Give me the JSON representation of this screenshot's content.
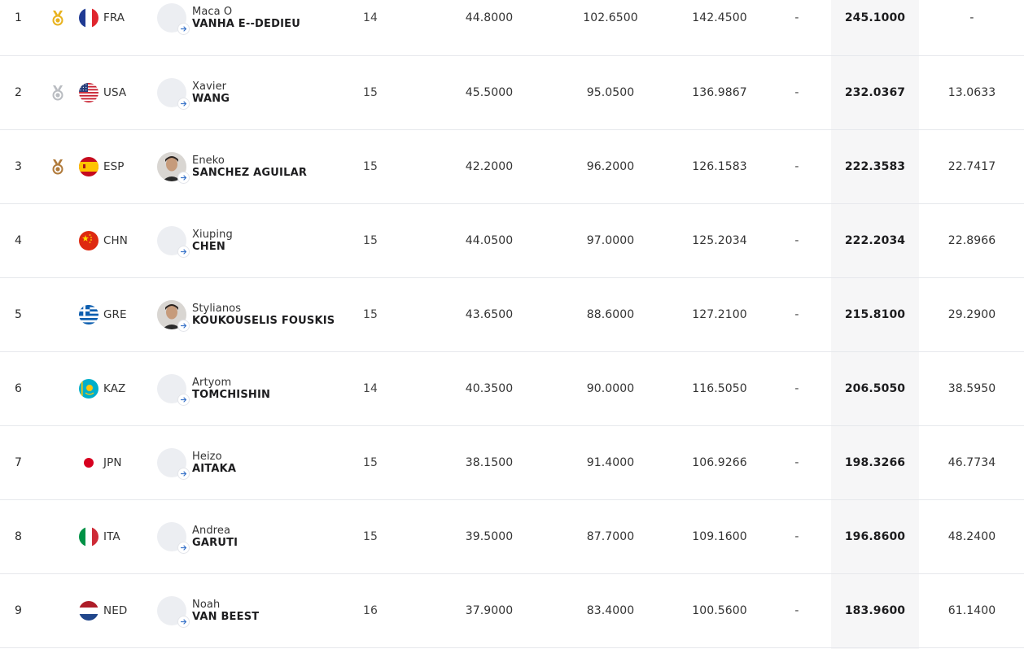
{
  "colors": {
    "gold": "#e8b21e",
    "silver": "#b9bcc1",
    "bronze": "#b07a3a",
    "row_divider": "#e6e8ec",
    "total_column_bg": "#f6f6f7"
  },
  "results": [
    {
      "rank": "1",
      "medal": "gold",
      "noc": "FRA",
      "flag": "flag-france-icon",
      "first_name": "Maca O",
      "last_name": "VANHA E--DEDIEU",
      "photo": "avatar-placeholder",
      "age": "14",
      "run1": "44.8000",
      "run2": "102.6500",
      "run3": "142.4500",
      "extra": "-",
      "total": "245.1000",
      "behind": "-"
    },
    {
      "rank": "2",
      "medal": "silver",
      "noc": "USA",
      "flag": "flag-usa-icon",
      "first_name": "Xavier",
      "last_name": "WANG",
      "photo": "avatar-placeholder",
      "age": "15",
      "run1": "45.5000",
      "run2": "95.0500",
      "run3": "136.9867",
      "extra": "-",
      "total": "232.0367",
      "behind": "13.0633"
    },
    {
      "rank": "3",
      "medal": "bronze",
      "noc": "ESP",
      "flag": "flag-spain-icon",
      "first_name": "Eneko",
      "last_name": "SANCHEZ AGUILAR",
      "photo": "athlete-photo",
      "age": "15",
      "run1": "42.2000",
      "run2": "96.2000",
      "run3": "126.1583",
      "extra": "-",
      "total": "222.3583",
      "behind": "22.7417"
    },
    {
      "rank": "4",
      "medal": "",
      "noc": "CHN",
      "flag": "flag-china-icon",
      "first_name": "Xiuping",
      "last_name": "CHEN",
      "photo": "avatar-placeholder",
      "age": "15",
      "run1": "44.0500",
      "run2": "97.0000",
      "run3": "125.2034",
      "extra": "-",
      "total": "222.2034",
      "behind": "22.8966"
    },
    {
      "rank": "5",
      "medal": "",
      "noc": "GRE",
      "flag": "flag-greece-icon",
      "first_name": "Stylianos",
      "last_name": "KOUKOUSELIS FOUSKIS",
      "photo": "athlete-photo",
      "age": "15",
      "run1": "43.6500",
      "run2": "88.6000",
      "run3": "127.2100",
      "extra": "-",
      "total": "215.8100",
      "behind": "29.2900"
    },
    {
      "rank": "6",
      "medal": "",
      "noc": "KAZ",
      "flag": "flag-kazakhstan-icon",
      "first_name": "Artyom",
      "last_name": "TOMCHISHIN",
      "photo": "avatar-placeholder",
      "age": "14",
      "run1": "40.3500",
      "run2": "90.0000",
      "run3": "116.5050",
      "extra": "-",
      "total": "206.5050",
      "behind": "38.5950"
    },
    {
      "rank": "7",
      "medal": "",
      "noc": "JPN",
      "flag": "flag-japan-icon",
      "first_name": "Heizo",
      "last_name": "AITAKA",
      "photo": "avatar-placeholder",
      "age": "15",
      "run1": "38.1500",
      "run2": "91.4000",
      "run3": "106.9266",
      "extra": "-",
      "total": "198.3266",
      "behind": "46.7734"
    },
    {
      "rank": "8",
      "medal": "",
      "noc": "ITA",
      "flag": "flag-italy-icon",
      "first_name": "Andrea",
      "last_name": "GARUTI",
      "photo": "avatar-placeholder",
      "age": "15",
      "run1": "39.5000",
      "run2": "87.7000",
      "run3": "109.1600",
      "extra": "-",
      "total": "196.8600",
      "behind": "48.2400"
    },
    {
      "rank": "9",
      "medal": "",
      "noc": "NED",
      "flag": "flag-netherlands-icon",
      "first_name": "Noah",
      "last_name": "VAN BEEST",
      "photo": "avatar-placeholder",
      "age": "16",
      "run1": "37.9000",
      "run2": "83.4000",
      "run3": "100.5600",
      "extra": "-",
      "total": "183.9600",
      "behind": "61.1400"
    }
  ]
}
